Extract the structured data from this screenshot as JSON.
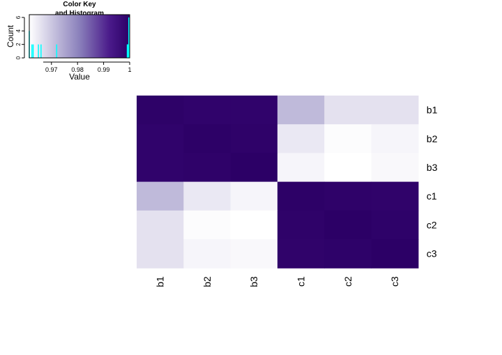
{
  "chart_data": [
    {
      "type": "heatmap",
      "rows": [
        "b1",
        "b2",
        "b3",
        "c1",
        "c2",
        "c3"
      ],
      "columns": [
        "b1",
        "b2",
        "b3",
        "c1",
        "c2",
        "c3"
      ],
      "values": [
        [
          0.9995,
          0.999,
          0.999,
          0.972,
          0.966,
          0.966
        ],
        [
          0.999,
          0.9998,
          0.9993,
          0.965,
          0.962,
          0.963
        ],
        [
          0.999,
          0.9993,
          0.9999,
          0.963,
          0.9615,
          0.9625
        ],
        [
          0.972,
          0.965,
          0.963,
          0.9998,
          0.9993,
          0.9991
        ],
        [
          0.966,
          0.962,
          0.9615,
          0.9993,
          0.9999,
          0.9994
        ],
        [
          0.966,
          0.963,
          0.9625,
          0.9991,
          0.9994,
          0.9999
        ]
      ],
      "color_scale": {
        "low": "#ffffff",
        "mid": "#6a5aa3",
        "high": "#2c0066",
        "range": [
          0.9615,
          1.0
        ]
      }
    },
    {
      "type": "bar",
      "title": "Color Key\nand Histogram",
      "title_lines": [
        "Color Key",
        "and Histogram"
      ],
      "xlabel": "Value",
      "ylabel": "Count",
      "xticks": [
        "0.97",
        "0.98",
        "0.99",
        "1"
      ],
      "xtick_values": [
        0.97,
        0.98,
        0.99,
        1.0
      ],
      "yticks": [
        "0",
        "2",
        "4",
        "6"
      ],
      "ytick_values": [
        0,
        2,
        4,
        6
      ],
      "xlim": [
        0.9615,
        1.0
      ],
      "ylim": [
        0,
        6
      ],
      "bins": [
        {
          "x": 0.9615,
          "count": 4
        },
        {
          "x": 0.9625,
          "count": 2
        },
        {
          "x": 0.963,
          "count": 2
        },
        {
          "x": 0.965,
          "count": 2
        },
        {
          "x": 0.966,
          "count": 2
        },
        {
          "x": 0.972,
          "count": 2
        },
        {
          "x": 0.9991,
          "count": 2
        },
        {
          "x": 0.9993,
          "count": 2
        },
        {
          "x": 0.9994,
          "count": 2
        },
        {
          "x": 0.9999,
          "count": 6
        }
      ],
      "hist_color": "#00ffff"
    }
  ]
}
